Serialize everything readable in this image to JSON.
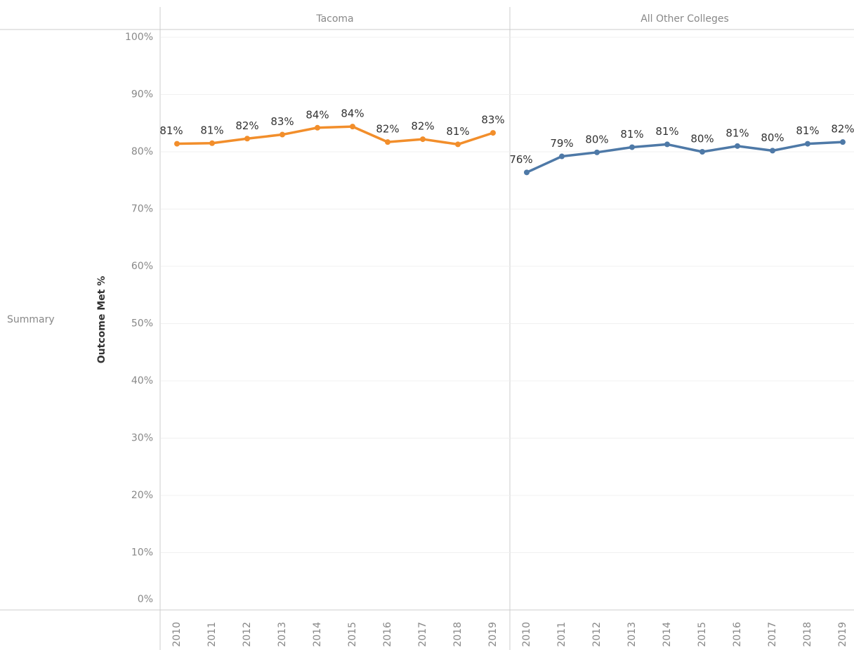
{
  "row_label": "Summary",
  "y_axis_label": "Outcome Met %",
  "chart_data": [
    {
      "type": "line",
      "title": "Tacoma",
      "categories": [
        "2010",
        "2011",
        "2012",
        "2013",
        "2014",
        "2015",
        "2016",
        "2017",
        "2018",
        "2019"
      ],
      "values": [
        81.4,
        81.5,
        82.3,
        83.0,
        84.2,
        84.4,
        81.7,
        82.2,
        81.3,
        83.3
      ],
      "value_labels": [
        "81%",
        "81%",
        "82%",
        "83%",
        "84%",
        "84%",
        "82%",
        "82%",
        "81%",
        "83%"
      ],
      "color": "#f28e2b",
      "ylim": [
        0,
        100
      ],
      "yticks": [
        {
          "value": 0,
          "label": "0%"
        },
        {
          "value": 10,
          "label": "10%"
        },
        {
          "value": 20,
          "label": "20%"
        },
        {
          "value": 30,
          "label": "30%"
        },
        {
          "value": 40,
          "label": "40%"
        },
        {
          "value": 50,
          "label": "50%"
        },
        {
          "value": 60,
          "label": "60%"
        },
        {
          "value": 70,
          "label": "70%"
        },
        {
          "value": 80,
          "label": "80%"
        },
        {
          "value": 90,
          "label": "90%"
        },
        {
          "value": 100,
          "label": "100%"
        }
      ],
      "grid": true
    },
    {
      "type": "line",
      "title": "All Other Colleges",
      "categories": [
        "2010",
        "2011",
        "2012",
        "2013",
        "2014",
        "2015",
        "2016",
        "2017",
        "2018",
        "2019"
      ],
      "values": [
        76.4,
        79.2,
        79.9,
        80.8,
        81.3,
        80.0,
        81.0,
        80.2,
        81.4,
        81.7
      ],
      "value_labels": [
        "76%",
        "79%",
        "80%",
        "81%",
        "81%",
        "80%",
        "81%",
        "80%",
        "81%",
        "82%"
      ],
      "color": "#4e79a7",
      "ylim": [
        0,
        100
      ],
      "grid": true
    }
  ]
}
